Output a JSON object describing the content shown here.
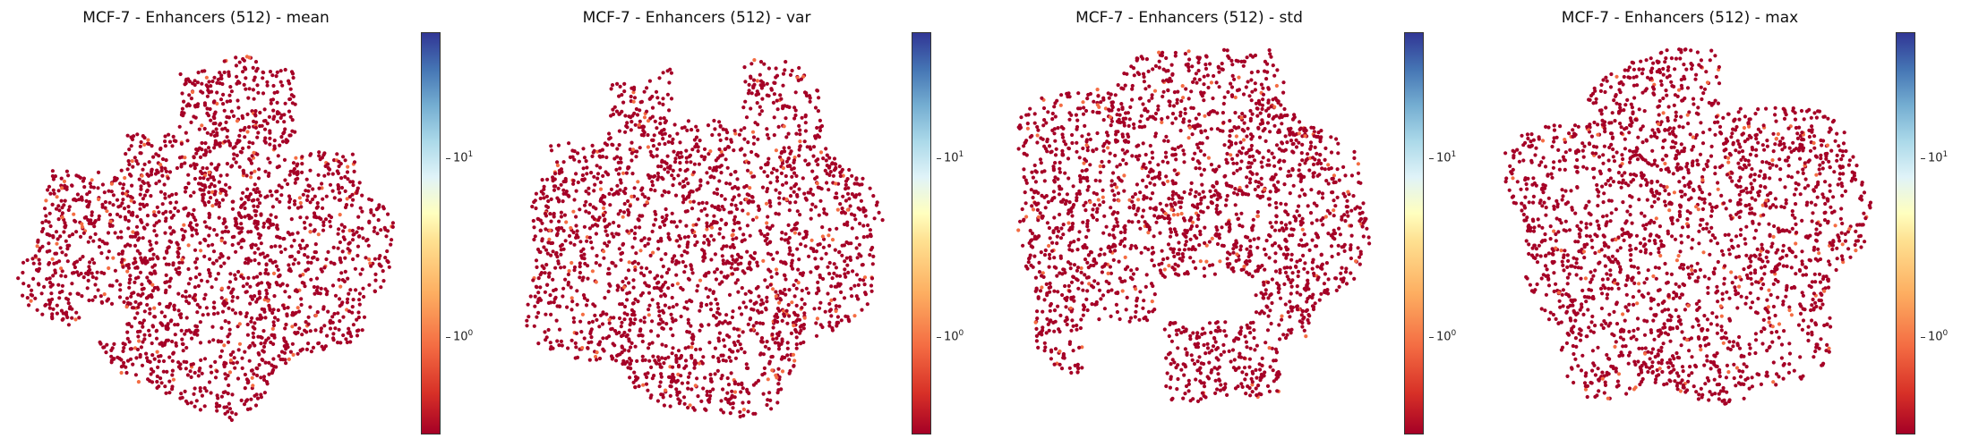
{
  "chart_data": [
    {
      "type": "scatter",
      "title": "MCF-7 - Enhancers (512) - mean",
      "colorbar": {
        "scale": "log",
        "range": [
          0.3,
          50
        ],
        "ticks": [
          "10^0",
          "10^1"
        ],
        "colormap": "RdYlBu"
      },
      "point_color": "#a50026",
      "highlight_color": "#f46d43",
      "approx_points": 2200,
      "shape": "blob with left lobe and bottom-left notch"
    },
    {
      "type": "scatter",
      "title": "MCF-7 - Enhancers (512) - var",
      "colorbar": {
        "scale": "log",
        "range": [
          0.3,
          50
        ],
        "ticks": [
          "10^0",
          "10^1"
        ],
        "colormap": "RdYlBu"
      },
      "point_color": "#a50026",
      "highlight_color": "#f46d43",
      "approx_points": 2200,
      "shape": "round blob with top notch"
    },
    {
      "type": "scatter",
      "title": "MCF-7 - Enhancers (512) - std",
      "colorbar": {
        "scale": "log",
        "range": [
          0.3,
          50
        ],
        "ticks": [
          "10^0",
          "10^1"
        ],
        "colormap": "RdYlBu"
      },
      "point_color": "#a50026",
      "highlight_color": "#f46d43",
      "approx_points": 2200,
      "shape": "round blob with bottom gap"
    },
    {
      "type": "scatter",
      "title": "MCF-7 - Enhancers (512) - max",
      "colorbar": {
        "scale": "log",
        "range": [
          0.3,
          50
        ],
        "ticks": [
          "10^0",
          "10^1"
        ],
        "colormap": "RdYlBu"
      },
      "point_color": "#a50026",
      "highlight_color": "#f46d43",
      "approx_points": 2200,
      "shape": "round blob with sparse edges"
    }
  ],
  "colorbar_tick_labels": {
    "base": "10",
    "exp0": "0",
    "exp1": "1"
  }
}
